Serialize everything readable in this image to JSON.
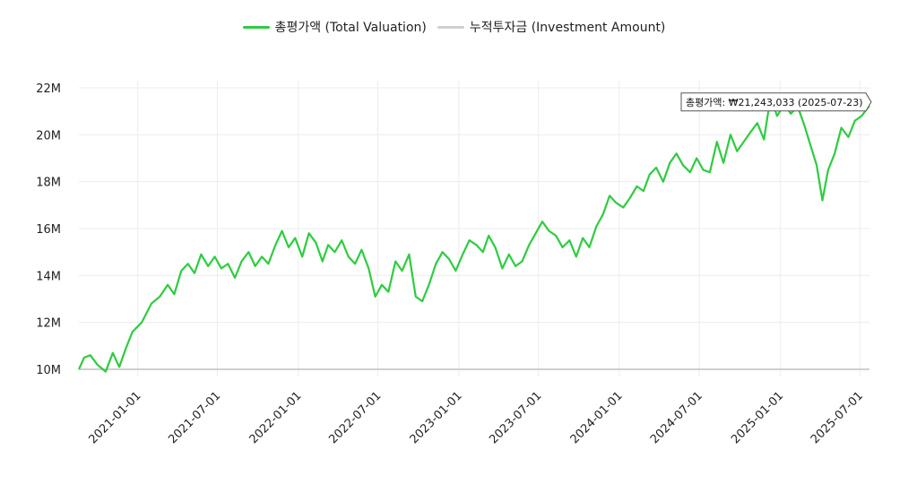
{
  "legend": [
    {
      "label": "총평가액 (Total Valuation)",
      "color": "#2ecc40"
    },
    {
      "label": "누적투자금 (Investment Amount)",
      "color": "#cfcfcf"
    }
  ],
  "tooltip": {
    "text": "총평가액: ₩21,243,033 (2025-07-23)"
  },
  "chart_data": {
    "type": "line",
    "x_start": "2020-08-20",
    "x_end": "2025-07-23",
    "ylim": [
      10000000,
      22000000
    ],
    "y_ticks": [
      {
        "value": 10000000,
        "label": "10M"
      },
      {
        "value": 12000000,
        "label": "12M"
      },
      {
        "value": 14000000,
        "label": "14M"
      },
      {
        "value": 16000000,
        "label": "16M"
      },
      {
        "value": 18000000,
        "label": "18M"
      },
      {
        "value": 20000000,
        "label": "20M"
      },
      {
        "value": 22000000,
        "label": "22M"
      }
    ],
    "x_ticks": [
      "2021-01-01",
      "2021-07-01",
      "2022-01-01",
      "2022-07-01",
      "2023-01-01",
      "2023-07-01",
      "2024-01-01",
      "2024-07-01",
      "2025-01-01",
      "2025-07-01"
    ],
    "grid": true,
    "legend_position": "top",
    "series": [
      {
        "name": "총평가액 (Total Valuation)",
        "color": "#2ecc40",
        "points": [
          [
            "2020-08-20",
            10000000
          ],
          [
            "2020-09-01",
            10500000
          ],
          [
            "2020-09-15",
            10600000
          ],
          [
            "2020-10-01",
            10200000
          ],
          [
            "2020-10-20",
            9900000
          ],
          [
            "2020-11-05",
            10700000
          ],
          [
            "2020-11-20",
            10100000
          ],
          [
            "2020-12-05",
            10900000
          ],
          [
            "2020-12-20",
            11600000
          ],
          [
            "2021-01-10",
            12000000
          ],
          [
            "2021-02-01",
            12800000
          ],
          [
            "2021-02-20",
            13100000
          ],
          [
            "2021-03-10",
            13600000
          ],
          [
            "2021-03-25",
            13200000
          ],
          [
            "2021-04-10",
            14200000
          ],
          [
            "2021-04-25",
            14500000
          ],
          [
            "2021-05-10",
            14100000
          ],
          [
            "2021-05-25",
            14900000
          ],
          [
            "2021-06-10",
            14400000
          ],
          [
            "2021-06-25",
            14800000
          ],
          [
            "2021-07-10",
            14300000
          ],
          [
            "2021-07-25",
            14500000
          ],
          [
            "2021-08-10",
            13900000
          ],
          [
            "2021-08-25",
            14600000
          ],
          [
            "2021-09-10",
            15000000
          ],
          [
            "2021-09-25",
            14400000
          ],
          [
            "2021-10-10",
            14800000
          ],
          [
            "2021-10-25",
            14500000
          ],
          [
            "2021-11-10",
            15300000
          ],
          [
            "2021-11-25",
            15900000
          ],
          [
            "2021-12-10",
            15200000
          ],
          [
            "2021-12-25",
            15600000
          ],
          [
            "2022-01-10",
            14800000
          ],
          [
            "2022-01-25",
            15800000
          ],
          [
            "2022-02-10",
            15400000
          ],
          [
            "2022-02-25",
            14600000
          ],
          [
            "2022-03-10",
            15300000
          ],
          [
            "2022-03-25",
            15000000
          ],
          [
            "2022-04-10",
            15500000
          ],
          [
            "2022-04-25",
            14800000
          ],
          [
            "2022-05-10",
            14500000
          ],
          [
            "2022-05-25",
            15100000
          ],
          [
            "2022-06-10",
            14300000
          ],
          [
            "2022-06-25",
            13100000
          ],
          [
            "2022-07-10",
            13600000
          ],
          [
            "2022-07-25",
            13300000
          ],
          [
            "2022-08-10",
            14600000
          ],
          [
            "2022-08-25",
            14200000
          ],
          [
            "2022-09-10",
            14900000
          ],
          [
            "2022-09-25",
            13100000
          ],
          [
            "2022-10-10",
            12900000
          ],
          [
            "2022-10-25",
            13600000
          ],
          [
            "2022-11-10",
            14500000
          ],
          [
            "2022-11-25",
            15000000
          ],
          [
            "2022-12-10",
            14700000
          ],
          [
            "2022-12-25",
            14200000
          ],
          [
            "2023-01-10",
            14900000
          ],
          [
            "2023-01-25",
            15500000
          ],
          [
            "2023-02-10",
            15300000
          ],
          [
            "2023-02-25",
            15000000
          ],
          [
            "2023-03-10",
            15700000
          ],
          [
            "2023-03-25",
            15200000
          ],
          [
            "2023-04-10",
            14300000
          ],
          [
            "2023-04-25",
            14900000
          ],
          [
            "2023-05-10",
            14400000
          ],
          [
            "2023-05-25",
            14600000
          ],
          [
            "2023-06-10",
            15300000
          ],
          [
            "2023-06-25",
            15800000
          ],
          [
            "2023-07-10",
            16300000
          ],
          [
            "2023-07-25",
            15900000
          ],
          [
            "2023-08-10",
            15700000
          ],
          [
            "2023-08-25",
            15200000
          ],
          [
            "2023-09-10",
            15500000
          ],
          [
            "2023-09-25",
            14800000
          ],
          [
            "2023-10-10",
            15600000
          ],
          [
            "2023-10-25",
            15200000
          ],
          [
            "2023-11-10",
            16100000
          ],
          [
            "2023-11-25",
            16600000
          ],
          [
            "2023-12-10",
            17400000
          ],
          [
            "2023-12-25",
            17100000
          ],
          [
            "2024-01-10",
            16900000
          ],
          [
            "2024-01-25",
            17300000
          ],
          [
            "2024-02-10",
            17800000
          ],
          [
            "2024-02-25",
            17600000
          ],
          [
            "2024-03-10",
            18300000
          ],
          [
            "2024-03-25",
            18600000
          ],
          [
            "2024-04-10",
            18000000
          ],
          [
            "2024-04-25",
            18800000
          ],
          [
            "2024-05-10",
            19200000
          ],
          [
            "2024-05-25",
            18700000
          ],
          [
            "2024-06-10",
            18400000
          ],
          [
            "2024-06-25",
            19000000
          ],
          [
            "2024-07-10",
            18500000
          ],
          [
            "2024-07-25",
            18400000
          ],
          [
            "2024-08-10",
            19700000
          ],
          [
            "2024-08-25",
            18800000
          ],
          [
            "2024-09-10",
            20000000
          ],
          [
            "2024-09-25",
            19300000
          ],
          [
            "2024-10-10",
            19700000
          ],
          [
            "2024-10-25",
            20100000
          ],
          [
            "2024-11-10",
            20500000
          ],
          [
            "2024-11-25",
            19800000
          ],
          [
            "2024-12-10",
            21600000
          ],
          [
            "2024-12-25",
            20800000
          ],
          [
            "2025-01-10",
            21300000
          ],
          [
            "2025-01-25",
            20900000
          ],
          [
            "2025-02-10",
            21200000
          ],
          [
            "2025-02-25",
            20400000
          ],
          [
            "2025-03-10",
            19600000
          ],
          [
            "2025-03-25",
            18700000
          ],
          [
            "2025-04-07",
            17200000
          ],
          [
            "2025-04-20",
            18500000
          ],
          [
            "2025-05-05",
            19200000
          ],
          [
            "2025-05-20",
            20300000
          ],
          [
            "2025-06-05",
            19900000
          ],
          [
            "2025-06-20",
            20600000
          ],
          [
            "2025-07-05",
            20800000
          ],
          [
            "2025-07-23",
            21243033
          ]
        ]
      },
      {
        "name": "누적투자금 (Investment Amount)",
        "color": "#cfcfcf",
        "points": [
          [
            "2020-08-20",
            10000000
          ],
          [
            "2025-07-23",
            10000000
          ]
        ]
      }
    ]
  }
}
